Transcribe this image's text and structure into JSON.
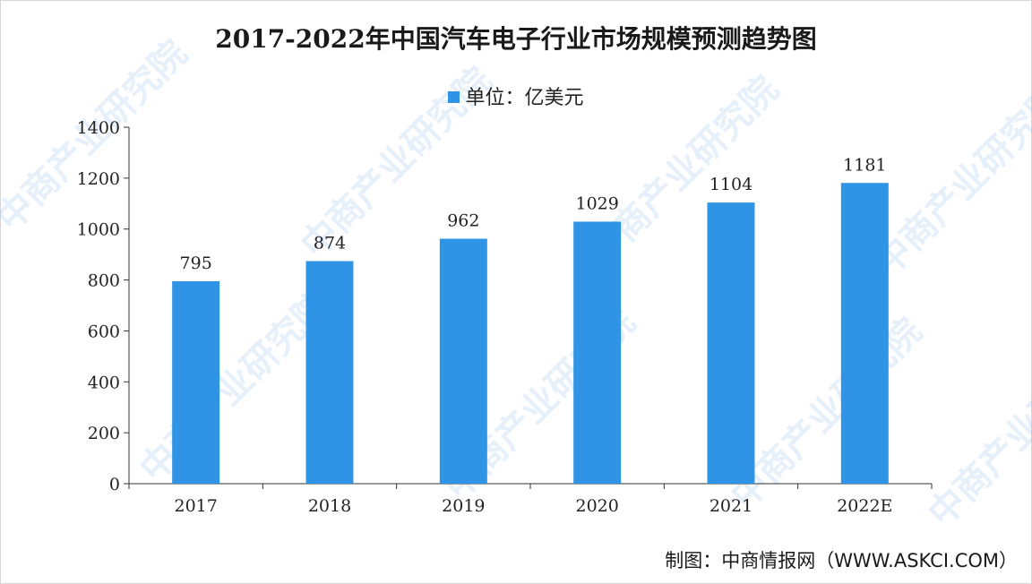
{
  "chart_data": {
    "type": "bar",
    "title": "2017-2022年中国汽车电子行业市场规模预测趋势图",
    "categories": [
      "2017",
      "2018",
      "2019",
      "2020",
      "2021",
      "2022E"
    ],
    "series": [
      {
        "name": "单位：亿美元",
        "values": [
          795,
          874,
          962,
          1029,
          1104,
          1181
        ],
        "color": "#2f93e6"
      }
    ],
    "ylim": [
      0,
      1400
    ],
    "yticks": [
      0,
      200,
      400,
      600,
      800,
      1000,
      1200,
      1400
    ],
    "grid": false,
    "legend": "top-center"
  },
  "source": "制图：中商情报网（WWW.ASKCI.COM）",
  "watermark": "中商产业研究院"
}
